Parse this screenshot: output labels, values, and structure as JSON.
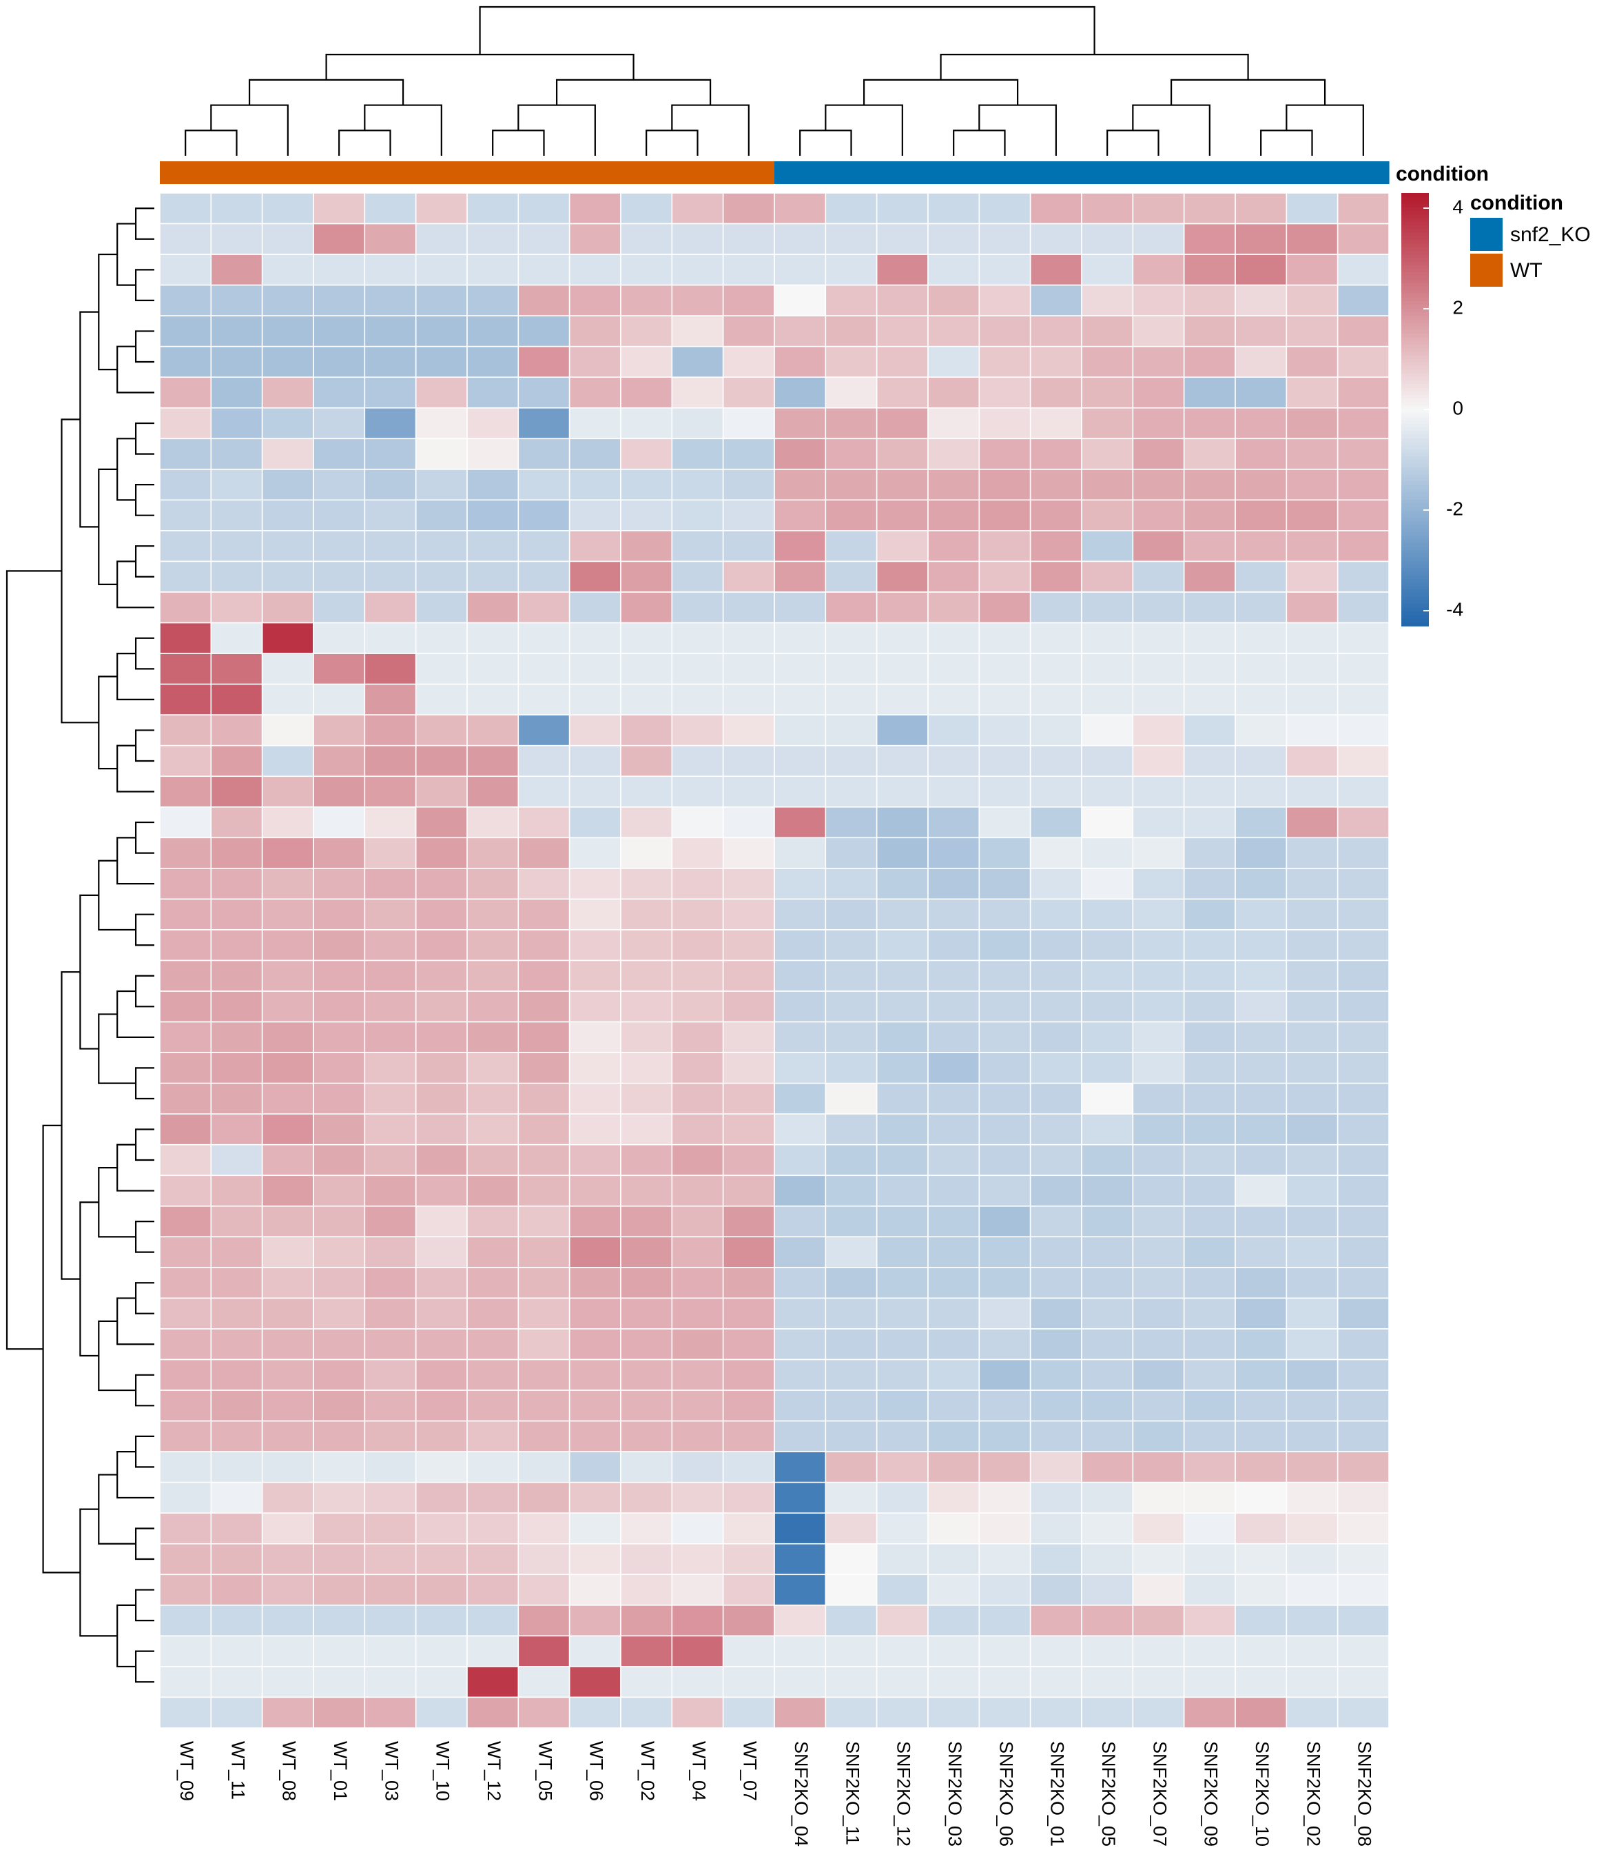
{
  "chart_data": {
    "type": "heatmap",
    "title": "",
    "columns": [
      "WT_09",
      "WT_11",
      "WT_08",
      "WT_01",
      "WT_03",
      "WT_10",
      "WT_12",
      "WT_05",
      "WT_06",
      "WT_02",
      "WT_04",
      "WT_07",
      "SNF2KO_04",
      "SNF2KO_11",
      "SNF2KO_12",
      "SNF2KO_03",
      "SNF2KO_06",
      "SNF2KO_01",
      "SNF2KO_05",
      "SNF2KO_07",
      "SNF2KO_09",
      "SNF2KO_10",
      "SNF2KO_02",
      "SNF2KO_08"
    ],
    "annotation": {
      "title": "condition",
      "legend_title": "condition",
      "levels": [
        {
          "name": "snf2_KO",
          "color": "#0072B2"
        },
        {
          "name": "WT",
          "color": "#D55E00"
        }
      ],
      "values": [
        "WT",
        "WT",
        "WT",
        "WT",
        "WT",
        "WT",
        "WT",
        "WT",
        "WT",
        "WT",
        "WT",
        "WT",
        "snf2_KO",
        "snf2_KO",
        "snf2_KO",
        "snf2_KO",
        "snf2_KO",
        "snf2_KO",
        "snf2_KO",
        "snf2_KO",
        "snf2_KO",
        "snf2_KO",
        "snf2_KO",
        "snf2_KO"
      ]
    },
    "colorbar": {
      "range": [
        -4.3,
        4.3
      ],
      "ticks": [
        4,
        2,
        0,
        -2,
        -4
      ],
      "colors": {
        "low": "#2166AC",
        "mid": "#F7F7F7",
        "high": "#B2182B"
      }
    },
    "row_groups": [
      {
        "rows": 14,
        "wt_mean": -0.9,
        "ko_mean": 0.9
      },
      {
        "rows": 6,
        "wt_mean": 1.6,
        "ko_mean": -0.8
      },
      {
        "rows": 20,
        "wt_mean": 1.4,
        "ko_mean": -1.1
      },
      {
        "rows": 5,
        "wt_mean": 0.8,
        "ko_mean": 0.2
      },
      {
        "rows": 4,
        "wt_mean": 0.2,
        "ko_mean": -0.5
      }
    ],
    "values": [
      [
        -0.9,
        -0.9,
        -0.9,
        0.9,
        -0.9,
        0.9,
        -0.9,
        -0.9,
        1.4,
        -0.9,
        1.1,
        1.5,
        1.3,
        -0.9,
        -0.9,
        -0.9,
        -0.9,
        1.4,
        1.3,
        1.2,
        1.2,
        1.2,
        -0.9,
        1.2
      ],
      [
        -0.7,
        -0.7,
        -0.7,
        2.0,
        1.5,
        -0.7,
        -0.7,
        -0.7,
        1.3,
        -0.7,
        -0.7,
        -0.7,
        -0.7,
        -0.7,
        -0.7,
        -0.7,
        -0.7,
        -0.7,
        -0.7,
        -0.7,
        1.9,
        2.0,
        2.0,
        1.3
      ],
      [
        -0.6,
        1.8,
        -0.6,
        -0.6,
        -0.6,
        -0.6,
        -0.6,
        -0.6,
        -0.6,
        -0.6,
        -0.6,
        -0.6,
        -0.6,
        -0.6,
        2.1,
        -0.6,
        -0.6,
        2.1,
        -0.6,
        1.3,
        2.0,
        2.3,
        1.4,
        -0.6
      ],
      [
        -1.4,
        -1.4,
        -1.4,
        -1.4,
        -1.4,
        -1.4,
        -1.4,
        1.5,
        1.4,
        1.3,
        1.3,
        1.4,
        0.0,
        1.0,
        1.1,
        1.2,
        0.8,
        -1.4,
        0.6,
        0.8,
        0.9,
        0.6,
        0.9,
        -1.4
      ],
      [
        -1.6,
        -1.6,
        -1.6,
        -1.6,
        -1.6,
        -1.6,
        -1.6,
        -1.6,
        1.2,
        0.9,
        0.4,
        1.3,
        1.1,
        1.2,
        1.0,
        1.0,
        1.1,
        1.1,
        1.2,
        0.7,
        1.2,
        1.1,
        1.0,
        1.3
      ],
      [
        -1.6,
        -1.6,
        -1.6,
        -1.6,
        -1.6,
        -1.6,
        -1.6,
        1.9,
        1.1,
        0.5,
        -1.6,
        0.5,
        1.4,
        0.9,
        1.0,
        -0.6,
        0.9,
        0.9,
        1.3,
        1.3,
        1.4,
        0.6,
        1.3,
        0.9
      ],
      [
        1.3,
        -1.6,
        1.2,
        -1.4,
        -1.4,
        1.0,
        -1.4,
        -1.4,
        1.3,
        1.4,
        0.4,
        0.9,
        -1.7,
        0.3,
        1.0,
        1.2,
        0.8,
        1.2,
        1.2,
        1.4,
        -1.6,
        -1.6,
        0.9,
        1.3
      ],
      [
        0.7,
        -1.5,
        -1.2,
        -1.0,
        -2.4,
        0.2,
        0.5,
        -2.7,
        -0.4,
        -0.4,
        -0.5,
        -0.2,
        1.5,
        1.5,
        1.6,
        0.3,
        0.5,
        0.4,
        1.2,
        1.4,
        1.4,
        1.4,
        1.5,
        1.4
      ],
      [
        -1.3,
        -1.3,
        0.6,
        -1.4,
        -1.4,
        0.1,
        0.2,
        -1.3,
        -1.3,
        0.8,
        -1.2,
        -1.2,
        1.8,
        1.4,
        1.2,
        0.7,
        1.4,
        1.4,
        0.9,
        1.6,
        0.9,
        1.4,
        1.3,
        1.3
      ],
      [
        -1.1,
        -0.9,
        -1.3,
        -1.1,
        -1.3,
        -1.0,
        -1.4,
        -0.9,
        -0.9,
        -0.9,
        -0.9,
        -1.0,
        1.5,
        1.5,
        1.5,
        1.5,
        1.6,
        1.5,
        1.5,
        1.5,
        1.5,
        1.5,
        1.4,
        1.4
      ],
      [
        -1.0,
        -1.0,
        -1.1,
        -1.1,
        -1.0,
        -1.3,
        -1.5,
        -1.5,
        -0.7,
        -0.7,
        -0.8,
        -0.7,
        1.4,
        1.6,
        1.6,
        1.6,
        1.7,
        1.6,
        1.2,
        1.4,
        1.5,
        1.7,
        1.7,
        1.4
      ],
      [
        -1.0,
        -1.0,
        -1.0,
        -1.0,
        -1.0,
        -1.0,
        -1.0,
        -1.0,
        1.1,
        1.5,
        -1.0,
        -1.0,
        1.9,
        -1.0,
        0.8,
        1.4,
        1.1,
        1.6,
        -1.2,
        1.8,
        1.3,
        1.3,
        1.3,
        1.4
      ],
      [
        -1.0,
        -1.0,
        -1.0,
        -1.0,
        -1.0,
        -1.0,
        -1.0,
        -1.0,
        2.3,
        1.7,
        -1.0,
        1.0,
        1.7,
        -1.0,
        2.0,
        1.4,
        1.0,
        1.7,
        1.1,
        -1.0,
        1.8,
        -1.0,
        0.8,
        -1.0
      ],
      [
        1.3,
        1.0,
        1.2,
        -1.0,
        1.1,
        -1.0,
        1.5,
        1.1,
        -1.0,
        1.6,
        -1.0,
        -1.0,
        -1.0,
        1.4,
        1.3,
        1.2,
        1.6,
        -1.0,
        -1.0,
        -1.0,
        -1.0,
        -1.0,
        1.3,
        -1.0
      ],
      [
        3.2,
        -0.4,
        3.8,
        -0.4,
        -0.4,
        -0.4,
        -0.4,
        -0.4,
        -0.4,
        -0.4,
        -0.4,
        -0.4,
        -0.4,
        -0.4,
        -0.4,
        -0.4,
        -0.4,
        -0.4,
        -0.4,
        -0.4,
        -0.4,
        -0.4,
        -0.4,
        -0.4
      ],
      [
        2.8,
        2.6,
        -0.4,
        2.1,
        2.6,
        -0.4,
        -0.4,
        -0.4,
        -0.4,
        -0.4,
        -0.4,
        -0.4,
        -0.4,
        -0.4,
        -0.4,
        -0.4,
        -0.4,
        -0.4,
        -0.4,
        -0.4,
        -0.4,
        -0.4,
        -0.4,
        -0.4
      ],
      [
        3.0,
        3.0,
        -0.4,
        -0.4,
        1.8,
        -0.4,
        -0.4,
        -0.4,
        -0.4,
        -0.4,
        -0.4,
        -0.4,
        -0.4,
        -0.4,
        -0.4,
        -0.4,
        -0.4,
        -0.4,
        -0.4,
        -0.4,
        -0.4,
        -0.4,
        -0.4,
        -0.4
      ],
      [
        1.2,
        1.3,
        0.1,
        1.2,
        1.6,
        1.2,
        1.2,
        -2.8,
        0.6,
        1.1,
        0.7,
        0.4,
        -0.5,
        -0.5,
        -1.8,
        -0.8,
        -0.6,
        -0.5,
        -0.1,
        0.5,
        -0.8,
        -0.3,
        -0.2,
        -0.2
      ],
      [
        1.0,
        1.7,
        -0.9,
        1.5,
        1.8,
        1.8,
        1.8,
        -0.7,
        -0.7,
        1.2,
        -0.7,
        -0.7,
        -0.7,
        -0.7,
        -0.7,
        -0.7,
        -0.7,
        -0.7,
        -0.7,
        0.5,
        -0.7,
        -0.7,
        0.8,
        0.4
      ],
      [
        1.7,
        2.3,
        1.2,
        1.8,
        1.7,
        1.2,
        1.8,
        -0.6,
        -0.6,
        -0.6,
        -0.6,
        -0.6,
        -0.6,
        -0.6,
        -0.6,
        -0.6,
        -0.6,
        -0.6,
        -0.6,
        -0.6,
        -0.6,
        -0.6,
        -0.6,
        -0.6
      ],
      [
        -0.2,
        1.2,
        0.5,
        -0.2,
        0.4,
        1.8,
        0.5,
        0.8,
        -0.9,
        0.6,
        -0.1,
        -0.2,
        2.4,
        -1.4,
        -1.6,
        -1.4,
        -0.4,
        -1.2,
        0.0,
        -0.6,
        -0.6,
        -1.2,
        1.8,
        1.1
      ],
      [
        1.5,
        1.7,
        1.9,
        1.6,
        0.9,
        1.7,
        1.2,
        1.5,
        -0.4,
        0.1,
        0.5,
        0.2,
        -0.5,
        -1.1,
        -1.6,
        -1.5,
        -1.2,
        -0.3,
        -0.4,
        -0.3,
        -1.0,
        -1.4,
        -1.0,
        -1.0
      ],
      [
        1.4,
        1.4,
        1.2,
        1.3,
        1.4,
        1.4,
        1.2,
        0.8,
        0.5,
        0.7,
        0.8,
        0.7,
        -0.8,
        -0.9,
        -1.2,
        -1.4,
        -1.3,
        -0.6,
        -0.2,
        -0.8,
        -1.1,
        -1.2,
        -1.0,
        -1.0
      ],
      [
        1.4,
        1.4,
        1.3,
        1.4,
        1.2,
        1.4,
        1.2,
        1.3,
        0.4,
        0.9,
        0.9,
        0.8,
        -1.0,
        -1.1,
        -1.0,
        -1.0,
        -1.0,
        -0.9,
        -0.9,
        -0.8,
        -1.2,
        -0.9,
        -1.0,
        -1.0
      ],
      [
        1.4,
        1.4,
        1.4,
        1.5,
        1.3,
        1.4,
        1.2,
        1.3,
        0.8,
        0.9,
        1.0,
        0.9,
        -1.1,
        -1.0,
        -0.9,
        -1.1,
        -1.2,
        -1.1,
        -1.0,
        -0.9,
        -0.9,
        -0.9,
        -1.0,
        -1.0
      ],
      [
        1.5,
        1.5,
        1.3,
        1.4,
        1.4,
        1.3,
        1.2,
        1.4,
        0.9,
        0.9,
        0.9,
        1.0,
        -1.1,
        -1.0,
        -1.0,
        -1.0,
        -1.0,
        -1.0,
        -0.9,
        -0.9,
        -0.9,
        -0.8,
        -1.0,
        -1.1
      ],
      [
        1.6,
        1.6,
        1.3,
        1.4,
        1.3,
        1.2,
        1.3,
        1.5,
        0.8,
        0.8,
        0.9,
        1.1,
        -1.1,
        -1.0,
        -1.0,
        -1.0,
        -1.0,
        -1.0,
        -1.0,
        -0.9,
        -1.0,
        -0.7,
        -1.0,
        -1.1
      ],
      [
        1.4,
        1.5,
        1.6,
        1.4,
        1.4,
        1.4,
        1.5,
        1.6,
        0.3,
        0.7,
        1.1,
        0.6,
        -1.0,
        -1.0,
        -1.2,
        -1.1,
        -1.0,
        -1.1,
        -0.9,
        -0.6,
        -1.1,
        -1.0,
        -1.0,
        -1.0
      ],
      [
        1.5,
        1.6,
        1.7,
        1.4,
        1.0,
        1.2,
        0.9,
        1.5,
        0.4,
        0.5,
        1.1,
        0.6,
        -0.8,
        -0.9,
        -1.2,
        -1.5,
        -1.1,
        -0.9,
        -0.9,
        -0.6,
        -1.0,
        -1.0,
        -1.0,
        -1.0
      ],
      [
        1.5,
        1.5,
        1.4,
        1.4,
        1.0,
        1.2,
        1.0,
        1.2,
        0.5,
        0.7,
        1.1,
        1.0,
        -1.2,
        0.1,
        -1.1,
        -1.1,
        -1.1,
        -1.1,
        0.0,
        -1.1,
        -1.1,
        -1.1,
        -1.1,
        -1.1
      ],
      [
        1.8,
        1.4,
        1.9,
        1.5,
        1.0,
        1.1,
        0.9,
        1.2,
        0.5,
        0.5,
        1.1,
        1.0,
        -0.6,
        -1.0,
        -1.2,
        -1.1,
        -1.1,
        -1.0,
        -0.8,
        -1.2,
        -1.2,
        -1.2,
        -1.3,
        -1.1
      ],
      [
        0.7,
        -0.7,
        1.3,
        1.5,
        1.2,
        1.5,
        1.2,
        1.2,
        1.1,
        1.3,
        1.6,
        1.3,
        -0.9,
        -1.2,
        -1.2,
        -1.0,
        -1.1,
        -1.0,
        -1.2,
        -1.1,
        -1.0,
        -1.1,
        -1.0,
        -1.1
      ],
      [
        1.0,
        1.2,
        1.7,
        1.2,
        1.5,
        1.3,
        1.5,
        1.2,
        1.2,
        1.2,
        1.2,
        1.2,
        -1.6,
        -1.2,
        -1.1,
        -1.1,
        -1.0,
        -1.3,
        -1.3,
        -1.1,
        -1.1,
        -0.4,
        -0.9,
        -1.1
      ],
      [
        1.7,
        1.2,
        1.2,
        1.2,
        1.6,
        0.5,
        1.0,
        0.9,
        1.6,
        1.6,
        1.2,
        1.8,
        -1.1,
        -1.2,
        -1.2,
        -1.2,
        -1.6,
        -1.0,
        -1.2,
        -1.0,
        -1.1,
        -1.1,
        -1.1,
        -1.1
      ],
      [
        1.3,
        1.3,
        0.7,
        0.9,
        1.1,
        0.6,
        1.3,
        1.2,
        2.1,
        1.8,
        1.3,
        2.0,
        -1.3,
        -0.6,
        -1.2,
        -1.2,
        -1.2,
        -1.1,
        -1.1,
        -1.0,
        -1.2,
        -1.0,
        -0.9,
        -1.1
      ],
      [
        1.3,
        1.3,
        1.0,
        1.1,
        1.4,
        1.1,
        1.3,
        1.2,
        1.5,
        1.6,
        1.4,
        1.5,
        -1.1,
        -1.3,
        -1.2,
        -1.2,
        -1.2,
        -1.1,
        -1.1,
        -1.0,
        -1.1,
        -1.3,
        -1.1,
        -1.1
      ],
      [
        1.1,
        1.2,
        1.2,
        1.0,
        1.3,
        1.1,
        1.3,
        1.0,
        1.4,
        1.4,
        1.4,
        1.4,
        -1.0,
        -1.0,
        -1.0,
        -1.0,
        -0.7,
        -1.3,
        -1.0,
        -1.1,
        -1.0,
        -1.4,
        -0.8,
        -1.3
      ],
      [
        1.3,
        1.3,
        1.3,
        1.3,
        1.3,
        1.3,
        1.3,
        0.9,
        1.4,
        1.4,
        1.5,
        1.4,
        -1.0,
        -1.1,
        -1.1,
        -1.1,
        -1.0,
        -1.3,
        -1.1,
        -1.1,
        -1.1,
        -1.2,
        -0.8,
        -1.1
      ],
      [
        1.4,
        1.4,
        1.3,
        1.4,
        1.1,
        1.4,
        1.3,
        1.3,
        1.3,
        1.3,
        1.3,
        1.4,
        -1.0,
        -1.0,
        -1.0,
        -0.9,
        -1.6,
        -1.2,
        -1.1,
        -1.3,
        -1.0,
        -1.2,
        -1.3,
        -1.1
      ],
      [
        1.4,
        1.5,
        1.4,
        1.5,
        1.3,
        1.4,
        1.3,
        1.3,
        1.3,
        1.3,
        1.3,
        1.4,
        -1.1,
        -1.1,
        -1.2,
        -1.1,
        -1.1,
        -1.2,
        -1.2,
        -1.1,
        -1.2,
        -1.1,
        -1.1,
        -1.1
      ],
      [
        1.3,
        1.3,
        1.3,
        1.3,
        1.2,
        1.2,
        1.0,
        1.3,
        1.3,
        1.3,
        1.3,
        1.3,
        -1.1,
        -1.1,
        -1.1,
        -1.2,
        -1.2,
        -1.1,
        -1.1,
        -1.2,
        -1.1,
        -1.1,
        -1.1,
        -1.1
      ],
      [
        -0.5,
        -0.5,
        -0.5,
        -0.4,
        -0.5,
        -0.3,
        -0.4,
        -0.5,
        -1.1,
        -0.5,
        -0.7,
        -0.6,
        -3.5,
        1.2,
        1.0,
        1.2,
        1.2,
        0.6,
        1.3,
        1.3,
        1.1,
        1.2,
        1.2,
        1.2
      ],
      [
        -0.5,
        -0.2,
        0.9,
        0.7,
        0.8,
        1.1,
        1.1,
        1.2,
        0.9,
        0.9,
        0.7,
        0.8,
        -3.6,
        -0.4,
        -0.6,
        0.4,
        0.2,
        -0.6,
        -0.5,
        0.1,
        0.1,
        0.0,
        0.2,
        0.3
      ],
      [
        1.1,
        1.1,
        0.5,
        1.0,
        1.0,
        0.8,
        0.8,
        0.5,
        -0.3,
        0.3,
        -0.2,
        0.4,
        -3.9,
        0.6,
        -0.4,
        0.1,
        0.2,
        -0.5,
        -0.3,
        0.4,
        -0.2,
        0.6,
        0.4,
        0.2
      ],
      [
        1.2,
        1.2,
        1.1,
        1.1,
        1.0,
        1.0,
        1.0,
        0.6,
        0.4,
        0.6,
        0.5,
        0.7,
        -3.6,
        0.0,
        -0.5,
        -0.5,
        -0.4,
        -0.8,
        -0.5,
        -0.3,
        -0.4,
        -0.3,
        -0.4,
        -0.3
      ],
      [
        1.2,
        1.3,
        1.1,
        1.2,
        1.2,
        1.2,
        1.1,
        0.8,
        0.2,
        0.5,
        0.3,
        0.8,
        -3.6,
        0.0,
        -0.9,
        -0.4,
        -0.6,
        -1.0,
        -0.7,
        0.2,
        -0.5,
        -0.3,
        -0.2,
        -0.2
      ],
      [
        -0.9,
        -0.9,
        -0.9,
        -0.9,
        -0.9,
        -0.9,
        -0.9,
        1.7,
        1.3,
        1.7,
        1.9,
        1.8,
        0.5,
        -0.9,
        0.7,
        -0.9,
        -0.9,
        1.3,
        1.3,
        1.2,
        0.8,
        -0.9,
        -0.9,
        -0.9
      ],
      [
        -0.4,
        -0.4,
        -0.4,
        -0.4,
        -0.4,
        -0.4,
        -0.4,
        3.0,
        -0.4,
        2.6,
        2.7,
        -0.4,
        -0.4,
        -0.4,
        -0.4,
        -0.4,
        -0.4,
        -0.4,
        -0.4,
        -0.4,
        -0.4,
        -0.4,
        -0.4,
        -0.4
      ],
      [
        -0.4,
        -0.4,
        -0.4,
        -0.4,
        -0.4,
        -0.4,
        3.7,
        -0.4,
        3.3,
        -0.4,
        -0.4,
        -0.4,
        -0.4,
        -0.4,
        -0.4,
        -0.4,
        -0.4,
        -0.4,
        -0.4,
        -0.4,
        -0.4,
        -0.4,
        -0.4,
        -0.4
      ],
      [
        -0.8,
        -0.8,
        1.3,
        1.5,
        1.4,
        -0.8,
        1.6,
        1.3,
        -0.8,
        -0.8,
        1.0,
        -0.8,
        1.5,
        -0.8,
        -0.8,
        -0.8,
        -0.8,
        -0.8,
        -0.8,
        -0.8,
        1.6,
        1.8,
        -0.8,
        -0.8
      ]
    ]
  }
}
